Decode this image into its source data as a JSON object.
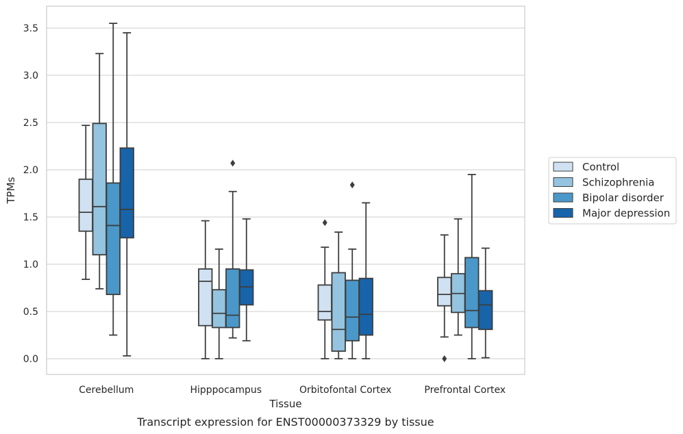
{
  "chart_data": {
    "type": "box",
    "xlabel": "Tissue",
    "ylabel": "TPMs",
    "caption": "Transcript expression for ENST00000373329 by tissue",
    "ylim": [
      -0.17,
      3.66
    ],
    "yticks": [
      0.0,
      0.5,
      1.0,
      1.5,
      2.0,
      2.5,
      3.0,
      3.5
    ],
    "ytick_labels": [
      "0.0",
      "0.5",
      "1.0",
      "1.5",
      "2.0",
      "2.5",
      "3.0",
      "3.5"
    ],
    "grid": "horizontal",
    "legend_position": "right",
    "categories": [
      "Cerebellum",
      "Hipppocampus",
      "Orbitofontal Cortex",
      "Prefrontal Cortex"
    ],
    "series": [
      {
        "name": "Control",
        "color": "#d0e1f2",
        "boxes": [
          {
            "whislo": 0.84,
            "q1": 1.35,
            "med": 1.55,
            "q3": 1.9,
            "whishi": 2.47,
            "fliers": []
          },
          {
            "whislo": 0.0,
            "q1": 0.35,
            "med": 0.82,
            "q3": 0.95,
            "whishi": 1.46,
            "fliers": []
          },
          {
            "whislo": 0.0,
            "q1": 0.41,
            "med": 0.5,
            "q3": 0.78,
            "whishi": 1.18,
            "fliers": [
              1.44
            ]
          },
          {
            "whislo": 0.23,
            "q1": 0.56,
            "med": 0.68,
            "q3": 0.86,
            "whishi": 1.31,
            "fliers": [
              0.0
            ]
          }
        ]
      },
      {
        "name": "Schizophrenia",
        "color": "#94c4df",
        "boxes": [
          {
            "whislo": 0.74,
            "q1": 1.1,
            "med": 1.61,
            "q3": 2.49,
            "whishi": 3.23,
            "fliers": []
          },
          {
            "whislo": 0.0,
            "q1": 0.33,
            "med": 0.48,
            "q3": 0.73,
            "whishi": 1.16,
            "fliers": []
          },
          {
            "whislo": 0.0,
            "q1": 0.08,
            "med": 0.31,
            "q3": 0.91,
            "whishi": 1.34,
            "fliers": []
          },
          {
            "whislo": 0.25,
            "q1": 0.49,
            "med": 0.69,
            "q3": 0.9,
            "whishi": 1.48,
            "fliers": []
          }
        ]
      },
      {
        "name": "Bipolar disorder",
        "color": "#4a98c9",
        "boxes": [
          {
            "whislo": 0.25,
            "q1": 0.68,
            "med": 1.41,
            "q3": 1.86,
            "whishi": 3.55,
            "fliers": []
          },
          {
            "whislo": 0.22,
            "q1": 0.33,
            "med": 0.46,
            "q3": 0.95,
            "whishi": 1.77,
            "fliers": [
              2.07
            ]
          },
          {
            "whislo": 0.0,
            "q1": 0.19,
            "med": 0.44,
            "q3": 0.83,
            "whishi": 1.16,
            "fliers": [
              1.84
            ]
          },
          {
            "whislo": 0.0,
            "q1": 0.33,
            "med": 0.51,
            "q3": 1.07,
            "whishi": 1.95,
            "fliers": []
          }
        ]
      },
      {
        "name": "Major depression",
        "color": "#1764ab",
        "boxes": [
          {
            "whislo": 0.03,
            "q1": 1.28,
            "med": 1.58,
            "q3": 2.23,
            "whishi": 3.45,
            "fliers": []
          },
          {
            "whislo": 0.19,
            "q1": 0.57,
            "med": 0.76,
            "q3": 0.94,
            "whishi": 1.48,
            "fliers": []
          },
          {
            "whislo": 0.0,
            "q1": 0.25,
            "med": 0.47,
            "q3": 0.85,
            "whishi": 1.65,
            "fliers": []
          },
          {
            "whislo": 0.01,
            "q1": 0.31,
            "med": 0.57,
            "q3": 0.72,
            "whishi": 1.17,
            "fliers": []
          }
        ]
      }
    ]
  }
}
